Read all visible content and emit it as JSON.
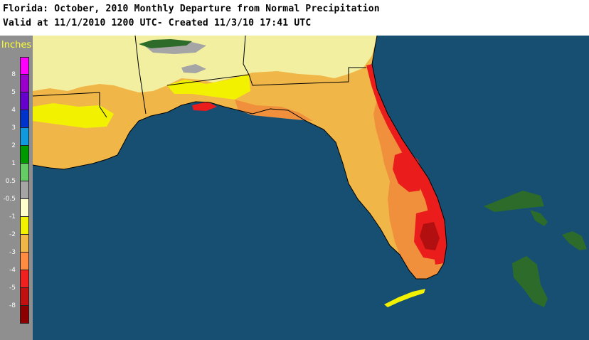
{
  "header": {
    "title_line1": "Florida: October, 2010 Monthly Departure from Normal Precipitation",
    "title_line2": "Valid at 11/1/2010 1200 UTC- Created 11/3/10 17:41 UTC"
  },
  "legend": {
    "units": "Inches",
    "entries": [
      {
        "label": "8",
        "color": "#ff00ff"
      },
      {
        "label": "5",
        "color": "#9900cc"
      },
      {
        "label": "4",
        "color": "#6600cc"
      },
      {
        "label": "3",
        "color": "#0033cc"
      },
      {
        "label": "2",
        "color": "#1199dd"
      },
      {
        "label": "1",
        "color": "#009900"
      },
      {
        "label": "0.5",
        "color": "#66cc66"
      },
      {
        "label": "-0.5",
        "color": "#a5a5a5"
      },
      {
        "label": "-1",
        "color": "#ffffcc"
      },
      {
        "label": "-2",
        "color": "#f2f200"
      },
      {
        "label": "-3",
        "color": "#f0b748"
      },
      {
        "label": "-4",
        "color": "#ff8c40"
      },
      {
        "label": "-5",
        "color": "#f02020"
      },
      {
        "label": "-8",
        "color": "#c01010"
      },
      {
        "label": "",
        "color": "#8c0000"
      }
    ]
  },
  "map": {
    "colors": {
      "water": "#164f72",
      "land_light": "#f3efa0",
      "land_yellow": "#f2f200",
      "land_orange": "#f0b748",
      "land_dark_orange": "#f0903c",
      "land_red": "#ea1c1c",
      "land_dark_red": "#b21010",
      "land_green": "#2d6b2a",
      "land_gray": "#a5a5a5",
      "borders": "#000000"
    }
  }
}
